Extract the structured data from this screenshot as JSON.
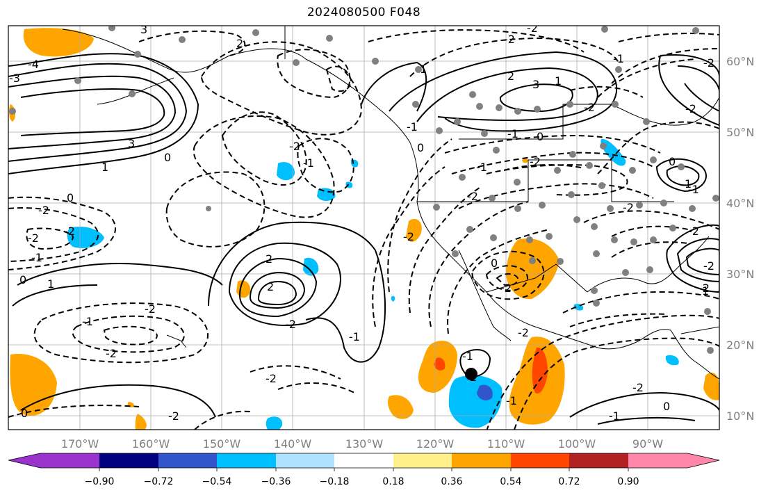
{
  "title": "2024080500 F048",
  "map": {
    "lon_range": [
      -180,
      -80
    ],
    "lat_range": [
      8,
      65
    ],
    "gridlines": true,
    "lon_ticks": [
      "170°W",
      "160°W",
      "150°W",
      "140°W",
      "130°W",
      "120°W",
      "110°W",
      "100°W",
      "90°W"
    ],
    "lat_ticks": [
      "60°N",
      "50°N",
      "40°N",
      "30°N",
      "20°N",
      "10°N"
    ],
    "tick_color": "#7f7f7f",
    "contour_labels": [
      "3",
      "2",
      "-4",
      "-3",
      "3",
      "1",
      "0",
      "-2",
      "0",
      "-2",
      "-2",
      "-1",
      "0",
      "1",
      "-2",
      "-2",
      "0",
      "-2",
      "-2",
      "-1",
      "-2",
      "2",
      "2",
      "-1",
      "-2",
      "-1",
      "0",
      "0",
      "-1",
      "-1",
      "2",
      "-2",
      "-2",
      "1",
      "-1",
      "-2",
      "1",
      "-2",
      "-1",
      "-2",
      "-2",
      "3",
      "-2",
      "-2",
      "-1",
      "0",
      "-2",
      "-2",
      "-2",
      "1",
      "-1",
      "2",
      "-1",
      "-2",
      "0",
      "-1",
      "1",
      "-2",
      "-2",
      "0",
      "-2"
    ],
    "station_color": "#808080"
  },
  "colorbar": {
    "colors": [
      "#9933cc",
      "#000080",
      "#3355cc",
      "#00bfff",
      "#b0e0ff",
      "#ffffff",
      "#fff08c",
      "#ffa500",
      "#ff4500",
      "#b22222",
      "#ff88aa"
    ],
    "tick_labels": [
      "−0.90",
      "−0.72",
      "−0.54",
      "−0.36",
      "−0.18",
      "0.18",
      "0.36",
      "0.54",
      "0.72",
      "0.90"
    ]
  }
}
